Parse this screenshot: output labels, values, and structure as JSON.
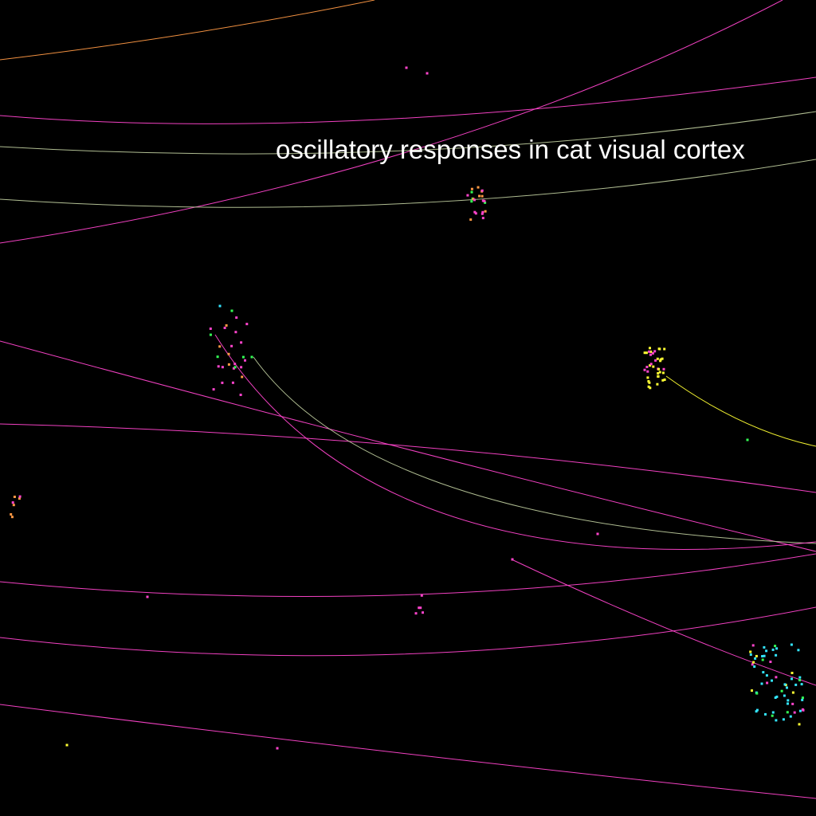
{
  "label": "oscillatory responses in cat visual cortex",
  "colors": {
    "background": "#000000",
    "label": "#ffffff",
    "magenta": "#ff44cc",
    "orange": "#ff9944",
    "sage": "#b9c79a",
    "yellow": "#ffff33",
    "cyan": "#33e6ff",
    "green": "#33ff55"
  }
}
